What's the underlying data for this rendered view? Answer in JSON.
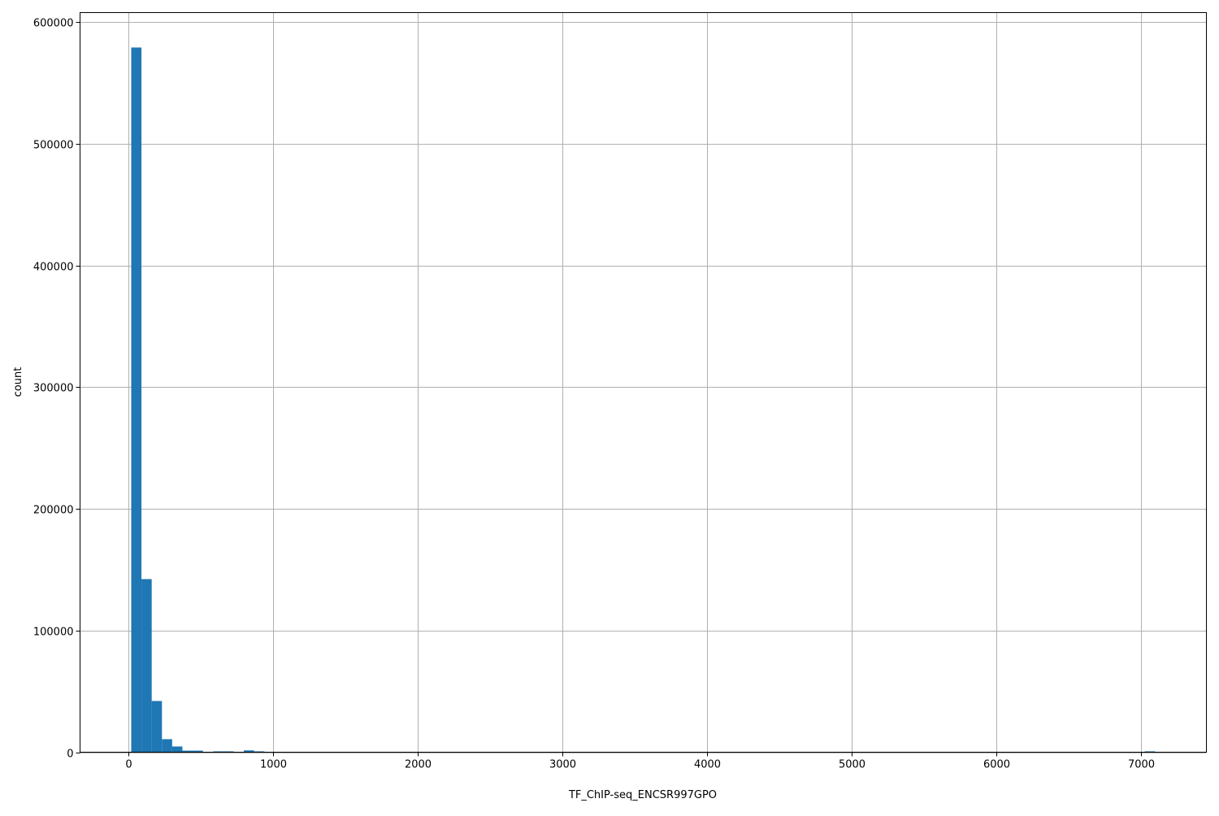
{
  "chart_data": {
    "type": "bar",
    "subtype": "histogram",
    "title": "",
    "xlabel": "TF_ChIP-seq_ENCSR997GPO",
    "ylabel": "count",
    "xlim": [
      -337,
      7455
    ],
    "ylim": [
      0,
      608000
    ],
    "grid": true,
    "bar_color": "#1f77b4",
    "grid_color": "#b0b0b0",
    "x_ticks": [
      0,
      1000,
      2000,
      3000,
      4000,
      5000,
      6000,
      7000
    ],
    "x_tick_labels": [
      "0",
      "1000",
      "2000",
      "3000",
      "4000",
      "5000",
      "6000",
      "7000"
    ],
    "y_ticks": [
      0,
      100000,
      200000,
      300000,
      400000,
      500000,
      600000
    ],
    "y_tick_labels": [
      "0",
      "100000",
      "200000",
      "300000",
      "400000",
      "500000",
      "600000"
    ],
    "bin_start": 17,
    "bin_end": 7100,
    "bin_count": 100,
    "counts_nonzero": [
      {
        "bin": 0,
        "count": 579300
      },
      {
        "bin": 1,
        "count": 142300
      },
      {
        "bin": 2,
        "count": 42100
      },
      {
        "bin": 3,
        "count": 10700
      },
      {
        "bin": 4,
        "count": 4700
      },
      {
        "bin": 5,
        "count": 1300
      },
      {
        "bin": 6,
        "count": 1300
      },
      {
        "bin": 8,
        "count": 700
      },
      {
        "bin": 9,
        "count": 700
      },
      {
        "bin": 11,
        "count": 1500
      },
      {
        "bin": 12,
        "count": 700
      },
      {
        "bin": 99,
        "count": 700
      }
    ]
  }
}
